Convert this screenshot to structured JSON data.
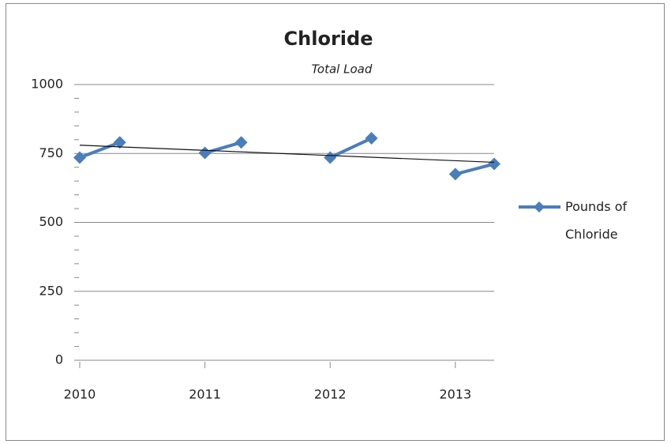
{
  "chart_data": {
    "type": "line",
    "title": "Chloride",
    "subtitle": "Total Load",
    "x": [
      2010,
      2010.32,
      null,
      2011,
      2011.29,
      null,
      2012,
      2012.33,
      null,
      2013,
      2013.31
    ],
    "xlim": [
      2010,
      2013.31
    ],
    "xticks": [
      2010,
      2011,
      2012,
      2013
    ],
    "series": [
      {
        "name": "Pounds of Chloride",
        "color": "#4a7ebb",
        "values": [
          735,
          790,
          null,
          752,
          790,
          null,
          735,
          805,
          null,
          675,
          712
        ]
      }
    ],
    "trendline": {
      "x": [
        2010,
        2013.31
      ],
      "values": [
        780,
        718
      ]
    },
    "ylim": [
      0,
      1000
    ],
    "yticks": [
      0,
      250,
      500,
      750,
      1000
    ],
    "grid": true,
    "legend": "right"
  }
}
